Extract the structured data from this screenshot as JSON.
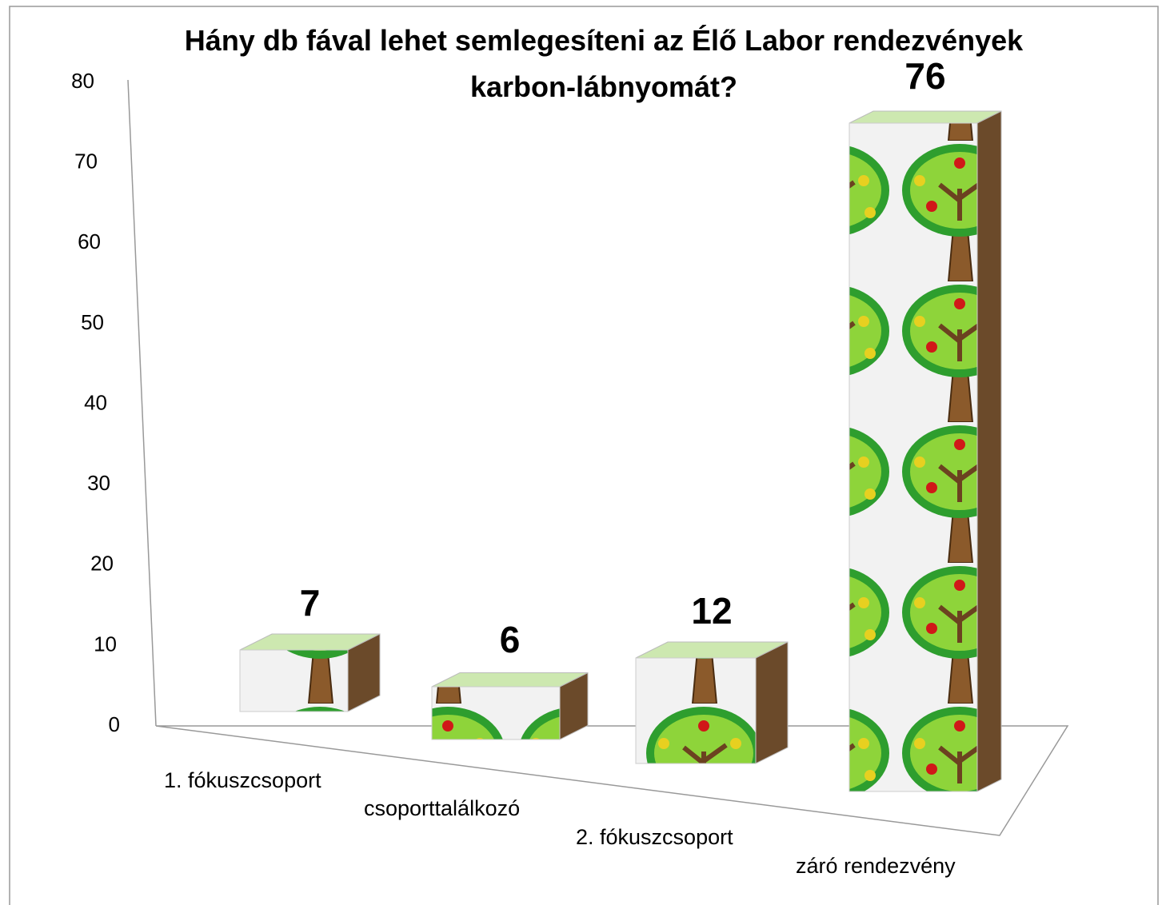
{
  "chart_data": {
    "type": "bar3d",
    "title": "Hány db fával lehet semlegesíteni az Élő Labor rendezvények karbon-lábnyomát?",
    "categories": [
      "1. fókuszcsoport",
      "csoporttalálkozó",
      "2. fókuszcsoport",
      "záró rendezvény"
    ],
    "values": [
      7,
      6,
      12,
      76
    ],
    "ylim": [
      0,
      80
    ],
    "yticks": [
      0,
      10,
      20,
      30,
      40,
      50,
      60,
      70,
      80
    ],
    "color": "#4caf2a"
  }
}
